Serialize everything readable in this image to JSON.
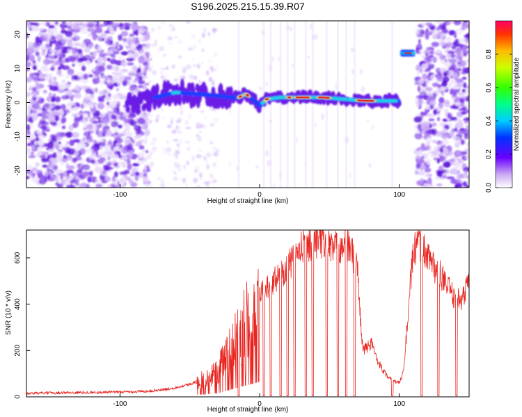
{
  "title": "S196.2025.215.15.39.R07",
  "colors": {
    "snr_line": "#e8231e",
    "axis": "#000000",
    "background": "#ffffff"
  },
  "chart_data": [
    {
      "type": "heatmap",
      "xlabel": "Height of straight line (km)",
      "ylabel": "Frequency (Hz)",
      "xlim": [
        -167,
        150
      ],
      "ylim": [
        -25,
        24
      ],
      "xticks": [
        -100,
        0,
        100
      ],
      "yticks": [
        -20,
        -10,
        0,
        10,
        20
      ],
      "colorbar": {
        "label": "Normalized spectral amplitude",
        "range": [
          0,
          1
        ],
        "ticks": [
          "0.0",
          "0.2",
          "0.4",
          "0.6",
          "0.8"
        ],
        "colormap": "rainbow (white/violet to red/magenta)"
      },
      "ridge": {
        "x": [
          -95,
          -80,
          -60,
          -45,
          -30,
          -20,
          -15,
          -10,
          -5,
          0,
          5,
          15,
          30,
          45,
          60,
          75,
          90,
          100
        ],
        "frequency": [
          0,
          1,
          3,
          2.5,
          2,
          1.5,
          1.5,
          2.5,
          1,
          -1,
          1,
          1.5,
          1.5,
          1.5,
          1,
          0.5,
          0.5,
          0.5
        ]
      },
      "isolated_peak": {
        "x": [
          102,
          110
        ],
        "frequency": 14.5
      },
      "noise_regions": [
        [
          -167,
          -80
        ],
        [
          112,
          150
        ]
      ]
    },
    {
      "type": "line",
      "xlabel": "Height of straight line (km)",
      "ylabel": "SNR (10 * v/v)",
      "xlim": [
        -167,
        150
      ],
      "ylim": [
        0,
        720
      ],
      "xticks": [
        -100,
        0,
        100
      ],
      "yticks": [
        0,
        200,
        400,
        600
      ],
      "series": [
        {
          "x": [
            -167,
            -140,
            -110,
            -90,
            -80,
            -70,
            -60,
            -50,
            -40,
            -30,
            -25,
            -20,
            -15,
            -10,
            -5,
            0,
            5,
            10,
            15,
            20,
            25,
            30,
            35,
            40,
            45,
            50,
            55,
            60,
            65,
            70,
            72,
            74,
            80,
            85,
            90,
            95,
            100,
            103,
            106,
            110,
            115,
            120,
            125,
            130,
            135,
            140,
            145,
            150
          ],
          "y": [
            15,
            18,
            20,
            22,
            25,
            30,
            40,
            55,
            75,
            110,
            160,
            220,
            280,
            330,
            380,
            440,
            470,
            500,
            530,
            560,
            600,
            640,
            660,
            680,
            670,
            650,
            640,
            660,
            640,
            560,
            350,
            200,
            230,
            150,
            100,
            70,
            60,
            110,
            330,
            630,
            650,
            620,
            560,
            520,
            470,
            420,
            420,
            500
          ]
        }
      ],
      "dropouts_x": [
        -15,
        3,
        8,
        15,
        20,
        25,
        33,
        38,
        48,
        56,
        62,
        68,
        95,
        116,
        128,
        141
      ]
    }
  ]
}
